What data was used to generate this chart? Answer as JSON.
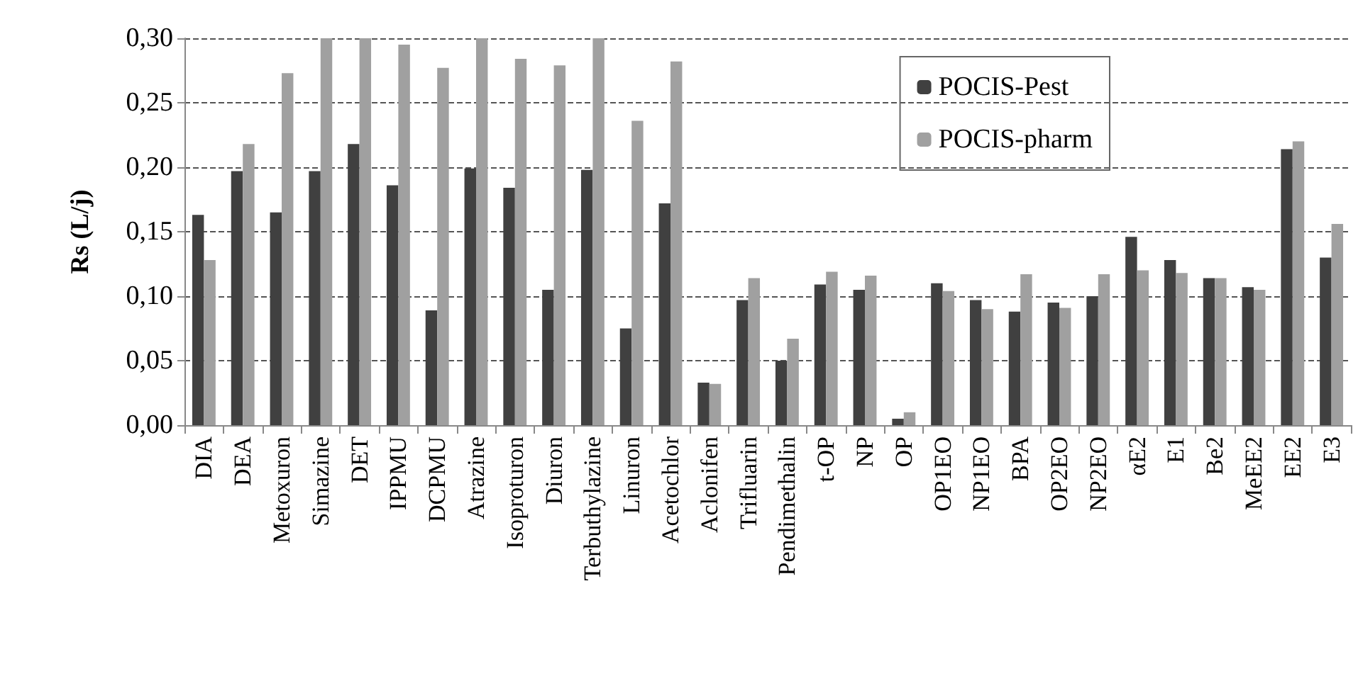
{
  "chart_data": {
    "type": "bar",
    "ylabel": "Rs (L/j)",
    "categories": [
      "DIA",
      "DEA",
      "Metoxuron",
      "Simazine",
      "DET",
      "IPPMU",
      "DCPMU",
      "Atrazine",
      "Isoproturon",
      "Diuron",
      "Terbuthylazine",
      "Linuron",
      "Acetochlor",
      "Aclonifen",
      "Trifluarin",
      "Pendimethalin",
      "t-OP",
      "NP",
      "OP",
      "OP1EO",
      "NP1EO",
      "BPA",
      "OP2EO",
      "NP2EO",
      "αE2",
      "E1",
      "Be2",
      "MeEE2",
      "EE2",
      "E3"
    ],
    "series": [
      {
        "name": "POCIS-Pest",
        "color": "#404040",
        "values": [
          0.163,
          0.197,
          0.165,
          0.197,
          0.218,
          0.186,
          0.089,
          0.199,
          0.184,
          0.105,
          0.198,
          0.075,
          0.172,
          0.033,
          0.097,
          0.05,
          0.109,
          0.105,
          0.005,
          0.11,
          0.097,
          0.088,
          0.095,
          0.1,
          0.146,
          0.128,
          0.114,
          0.107,
          0.214,
          0.13
        ]
      },
      {
        "name": "POCIS-pharm",
        "color": "#a0a0a0",
        "values": [
          0.128,
          0.218,
          0.273,
          0.3,
          0.3,
          0.295,
          0.277,
          0.3,
          0.284,
          0.279,
          0.3,
          0.236,
          0.282,
          0.032,
          0.114,
          0.067,
          0.119,
          0.116,
          0.01,
          0.104,
          0.09,
          0.117,
          0.091,
          0.117,
          0.12,
          0.118,
          0.114,
          0.105,
          0.22,
          0.156
        ]
      }
    ],
    "ylim": [
      0,
      0.3
    ],
    "yticks": [
      {
        "value": 0,
        "label": "0,00"
      },
      {
        "value": 0.05,
        "label": "0,05"
      },
      {
        "value": 0.1,
        "label": "0,10"
      },
      {
        "value": 0.15,
        "label": "0,15"
      },
      {
        "value": 0.2,
        "label": "0,20"
      },
      {
        "value": 0.25,
        "label": "0,25"
      },
      {
        "value": 0.3,
        "label": "0,30"
      }
    ],
    "grid": "y",
    "legend": "top right"
  }
}
